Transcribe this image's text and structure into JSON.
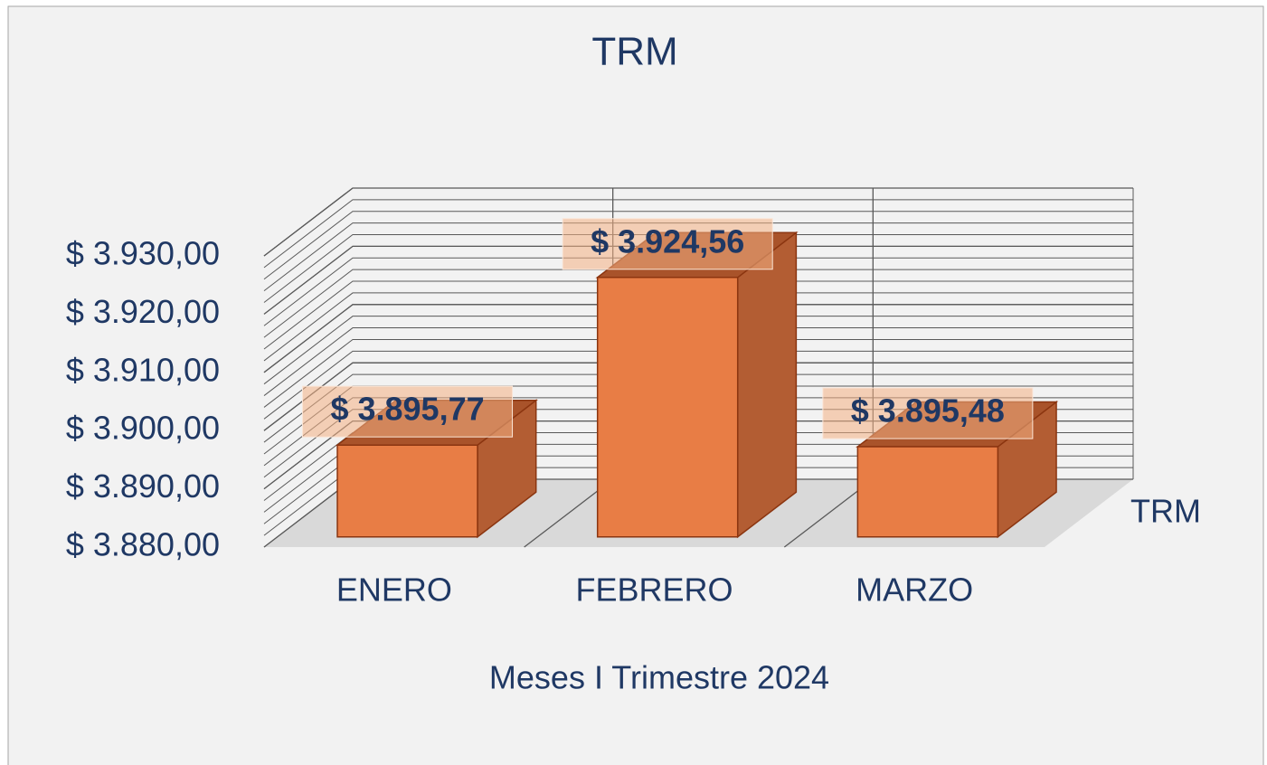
{
  "chart_data": {
    "type": "bar",
    "title": "TRM",
    "x_label": "Meses I Trimestre 2024",
    "categories": [
      "ENERO",
      "FEBRERO",
      "MARZO"
    ],
    "series": [
      {
        "name": "TRM",
        "color": "#e87d45",
        "values": [
          3895.77,
          3924.56,
          3895.48
        ],
        "value_labels": [
          "$ 3.895,77",
          "$ 3.924,56",
          "$ 3.895,48"
        ]
      }
    ],
    "ylim": [
      3880,
      3930
    ],
    "yticks": [
      {
        "value": 3880,
        "label": "$ 3.880,00"
      },
      {
        "value": 3890,
        "label": "$ 3.890,00"
      },
      {
        "value": 3900,
        "label": "$ 3.900,00"
      },
      {
        "value": 3910,
        "label": "$ 3.910,00"
      },
      {
        "value": 3920,
        "label": "$ 3.920,00"
      },
      {
        "value": 3930,
        "label": "$ 3.930,00"
      }
    ],
    "minor_grid_step": 2,
    "grid": true,
    "legend": "right"
  }
}
